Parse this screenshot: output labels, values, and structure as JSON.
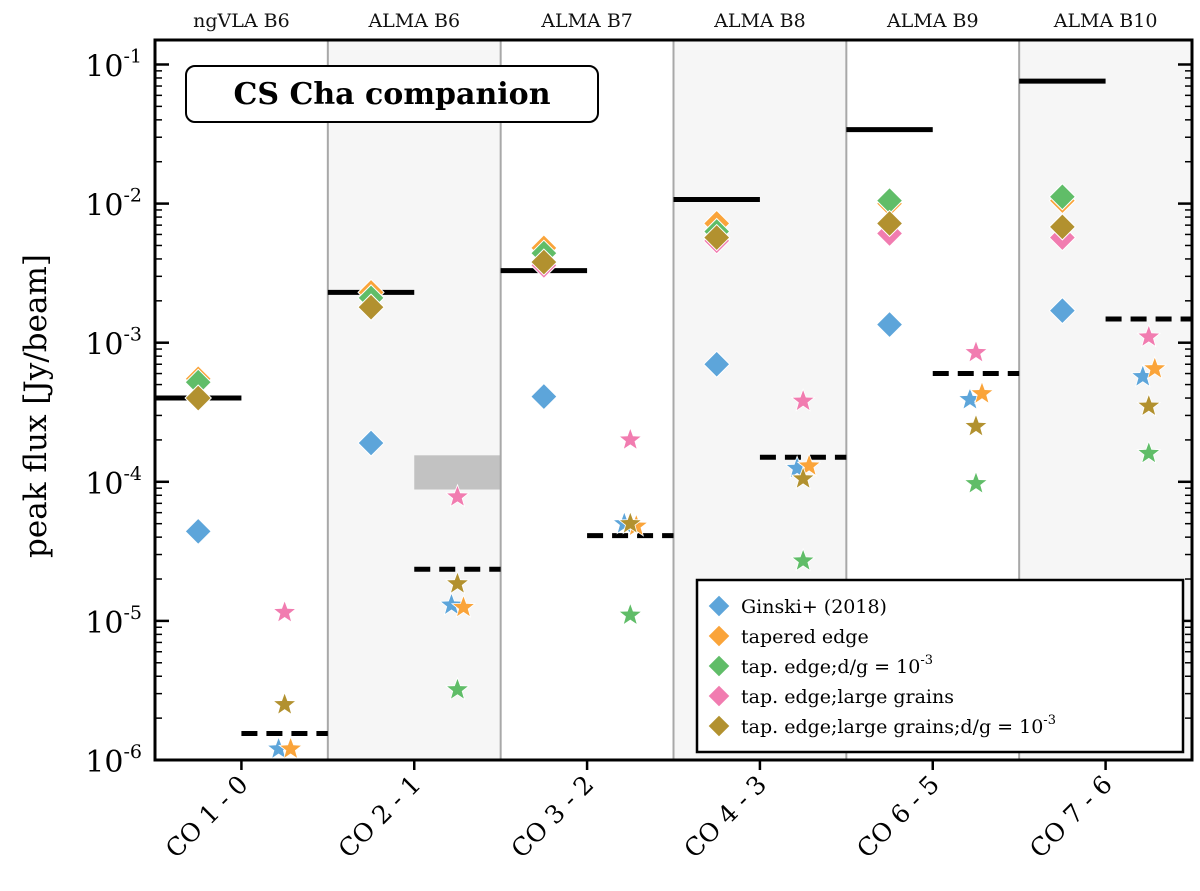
{
  "chart_data": {
    "type": "scatter",
    "title": "CS Cha companion",
    "ylabel": "peak flux [Jy/beam]",
    "yscale": "log",
    "ylim": [
      1e-06,
      0.15
    ],
    "ytick_labels": [
      {
        "base": "10",
        "exp": "-6"
      },
      {
        "base": "10",
        "exp": "-5"
      },
      {
        "base": "10",
        "exp": "-4"
      },
      {
        "base": "10",
        "exp": "-3"
      },
      {
        "base": "10",
        "exp": "-2"
      },
      {
        "base": "10",
        "exp": "-1"
      }
    ],
    "categories": [
      "CO 1 - 0",
      "CO 2 - 1",
      "CO 3 - 2",
      "CO 4 - 3",
      "CO 6 - 5",
      "CO 7 - 6"
    ],
    "bands": [
      "ngVLA B6",
      "ALMA B6",
      "ALMA B7",
      "ALMA B8",
      "ALMA B9",
      "ALMA B10"
    ],
    "legend": {
      "placement": "lower-right",
      "entries": [
        "Ginski+ (2018)",
        "tapered edge",
        "tap. edge;d/g = 10",
        "tap. edge;large grains",
        "tap. edge;large grains;d/g = 10"
      ],
      "entry_exponent": "-3"
    },
    "series": [
      {
        "name": "Ginski+ (2018)",
        "color": "#5DA5DA",
        "diamond_values": [
          4.4e-05,
          0.00019,
          0.00041,
          0.0007,
          0.00135,
          0.0017
        ],
        "star_values": [
          1.2e-06,
          1.3e-05,
          5e-05,
          0.000125,
          0.00039,
          0.00057
        ]
      },
      {
        "name": "tapered edge",
        "color": "#FAA43A",
        "diamond_values": [
          0.00055,
          0.0023,
          0.0048,
          0.0072,
          0.01,
          0.0105
        ],
        "star_values": [
          1.2e-06,
          1.25e-05,
          4.8e-05,
          0.00013,
          0.00043,
          0.00065
        ]
      },
      {
        "name": "tap. edge;d/g = 10-3",
        "color": "#60BD68",
        "diamond_values": [
          0.00052,
          0.0021,
          0.0044,
          0.0063,
          0.0105,
          0.0112
        ],
        "star_values": [
          null,
          3.2e-06,
          1.1e-05,
          2.7e-05,
          9.7e-05,
          0.00016
        ]
      },
      {
        "name": "tap. edge;large grains",
        "color": "#F17CB0",
        "diamond_values": [
          0.0004,
          0.0018,
          0.0036,
          0.0054,
          0.0061,
          0.0057
        ],
        "star_values": [
          1.15e-05,
          7.8e-05,
          0.0002,
          0.00038,
          0.00085,
          0.0011
        ]
      },
      {
        "name": "tap. edge;large grains;d/g = 10-3",
        "color": "#B2912F",
        "diamond_values": [
          0.0004,
          0.0018,
          0.0038,
          0.0057,
          0.0072,
          0.0068
        ],
        "star_values": [
          2.5e-06,
          1.85e-05,
          5e-05,
          0.000105,
          0.00025,
          0.00035
        ]
      }
    ],
    "sensitivity_solid": [
      0.0004,
      0.0023,
      0.0033,
      0.0107,
      0.034,
      0.076
    ],
    "sensitivity_dashed": [
      1.55e-06,
      2.35e-05,
      4.1e-05,
      0.00015,
      0.0006,
      0.00148
    ],
    "shaded_range": {
      "category_index": 1,
      "low": 8.8e-05,
      "high": 0.000155
    }
  }
}
